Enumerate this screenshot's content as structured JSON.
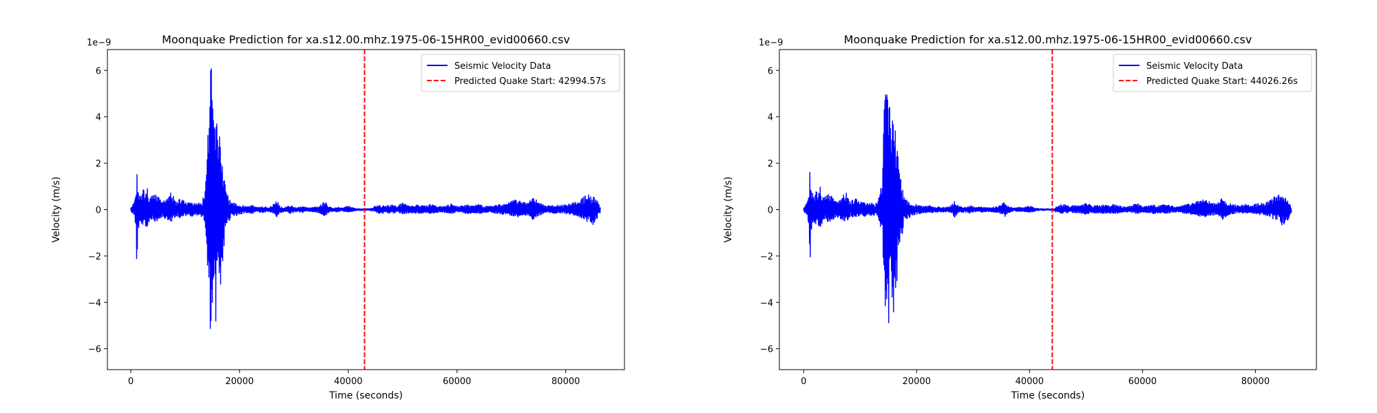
{
  "chart_data": [
    {
      "type": "line",
      "title": "Moonquake Prediction for xa.s12.00.mhz.1975-06-15HR00_evid00660.csv",
      "xlabel": "Time (seconds)",
      "ylabel": "Velocity (m/s)",
      "y_scale_label": "1e−9",
      "xlim": [
        -4300,
        90800
      ],
      "ylim": [
        -6.9e-09,
        6.9e-09
      ],
      "xticks": [
        0,
        20000,
        40000,
        60000,
        80000
      ],
      "xtick_labels": [
        "0",
        "20000",
        "40000",
        "60000",
        "80000"
      ],
      "yticks": [
        -6e-09,
        -4e-09,
        -2e-09,
        0,
        2e-09,
        4e-09,
        6e-09
      ],
      "ytick_labels": [
        "−6",
        "−4",
        "−2",
        "0",
        "2",
        "4",
        "6"
      ],
      "grid": false,
      "legend_position": "upper right",
      "series": [
        {
          "name": "Seismic Velocity Data",
          "color": "#0000ff",
          "style": "solid",
          "x_range": [
            0,
            86400
          ],
          "envelope_min": [
            [
              0,
              -1e-10
            ],
            [
              700,
              -3.5e-10
            ],
            [
              1000,
              -9e-10
            ],
            [
              1100,
              -2.55e-09
            ],
            [
              1300,
              -1e-09
            ],
            [
              1700,
              -5e-10
            ],
            [
              2200,
              -7e-10
            ],
            [
              2600,
              -8e-10
            ],
            [
              3000,
              -9e-10
            ],
            [
              3500,
              -5e-10
            ],
            [
              4200,
              -6e-10
            ],
            [
              5000,
              -5e-10
            ],
            [
              5800,
              -3e-10
            ],
            [
              6600,
              -5e-10
            ],
            [
              7500,
              -6e-10
            ],
            [
              8300,
              -3e-10
            ],
            [
              9200,
              -4e-10
            ],
            [
              10000,
              -3e-10
            ],
            [
              11000,
              -3e-10
            ],
            [
              12000,
              -3e-10
            ],
            [
              12800,
              -2.5e-10
            ],
            [
              13400,
              -5e-10
            ],
            [
              13900,
              -1.2e-09
            ],
            [
              14200,
              -3e-09
            ],
            [
              14400,
              -5.3e-09
            ],
            [
              14600,
              -5.6e-09
            ],
            [
              14800,
              -6.3e-09
            ],
            [
              15000,
              -5.2e-09
            ],
            [
              15300,
              -4.3e-09
            ],
            [
              15600,
              -5e-09
            ],
            [
              15900,
              -4.6e-09
            ],
            [
              16200,
              -3.6e-09
            ],
            [
              16500,
              -3.4e-09
            ],
            [
              16800,
              -2.6e-09
            ],
            [
              17200,
              -1.6e-09
            ],
            [
              17700,
              -8e-10
            ],
            [
              18300,
              -4.5e-10
            ],
            [
              19000,
              -3e-10
            ],
            [
              19800,
              -2.5e-10
            ],
            [
              20600,
              -2e-10
            ],
            [
              21400,
              -1.5e-10
            ],
            [
              22300,
              -2e-10
            ],
            [
              23200,
              -1.2e-10
            ],
            [
              24200,
              -1.5e-10
            ],
            [
              25200,
              -1.2e-10
            ],
            [
              26100,
              -1.5e-10
            ],
            [
              26800,
              -3.8e-10
            ],
            [
              27500,
              -1.5e-10
            ],
            [
              28500,
              -1.2e-10
            ],
            [
              29500,
              -1.8e-10
            ],
            [
              30500,
              -1e-10
            ],
            [
              31500,
              -1.5e-10
            ],
            [
              32500,
              -1e-10
            ],
            [
              33500,
              -1.2e-10
            ],
            [
              34500,
              -1.5e-10
            ],
            [
              35200,
              -2.2e-10
            ],
            [
              35700,
              -3.2e-10
            ],
            [
              36300,
              -1.5e-10
            ],
            [
              37200,
              -1e-10
            ],
            [
              38200,
              -1.2e-10
            ],
            [
              39000,
              -1e-10
            ],
            [
              40000,
              -1.5e-10
            ],
            [
              41000,
              -8e-11
            ],
            [
              42000,
              -5e-11
            ],
            [
              43000,
              -6e-11
            ],
            [
              44000,
              -5e-11
            ],
            [
              45000,
              -1.5e-10
            ],
            [
              46000,
              -2e-10
            ],
            [
              47000,
              -1.5e-10
            ],
            [
              48000,
              -2e-10
            ],
            [
              49000,
              -1.5e-10
            ],
            [
              50000,
              -2.5e-10
            ],
            [
              51000,
              -1.5e-10
            ],
            [
              52000,
              -1.8e-10
            ],
            [
              53000,
              -2e-10
            ],
            [
              54000,
              -1.5e-10
            ],
            [
              55000,
              -2e-10
            ],
            [
              56000,
              -1.5e-10
            ],
            [
              57000,
              -1.2e-10
            ],
            [
              58000,
              -1.5e-10
            ],
            [
              59000,
              -2e-10
            ],
            [
              60000,
              -1.2e-10
            ],
            [
              61000,
              -1.5e-10
            ],
            [
              62000,
              -2e-10
            ],
            [
              63000,
              -1.5e-10
            ],
            [
              64000,
              -2e-10
            ],
            [
              65000,
              -1.5e-10
            ],
            [
              66000,
              -1.2e-10
            ],
            [
              67000,
              -1.8e-10
            ],
            [
              68000,
              -2e-10
            ],
            [
              69000,
              -2.5e-10
            ],
            [
              70000,
              -3e-10
            ],
            [
              71000,
              -3.5e-10
            ],
            [
              72000,
              -3e-10
            ],
            [
              73000,
              -2.5e-10
            ],
            [
              74000,
              -5e-10
            ],
            [
              75000,
              -3e-10
            ],
            [
              76000,
              -2e-10
            ],
            [
              77000,
              -1.5e-10
            ],
            [
              78000,
              -2e-10
            ],
            [
              79000,
              -1.5e-10
            ],
            [
              80000,
              -2e-10
            ],
            [
              81000,
              -2.5e-10
            ],
            [
              82000,
              -3e-10
            ],
            [
              83000,
              -4e-10
            ],
            [
              84000,
              -5.5e-10
            ],
            [
              85000,
              -7.5e-10
            ],
            [
              85800,
              -4.5e-10
            ],
            [
              86400,
              -1e-10
            ]
          ],
          "envelope_max": [
            [
              0,
              1e-10
            ],
            [
              700,
              3.5e-10
            ],
            [
              1000,
              1e-09
            ],
            [
              1100,
              2.15e-09
            ],
            [
              1300,
              1.3e-09
            ],
            [
              1700,
              5e-10
            ],
            [
              2200,
              8e-10
            ],
            [
              2600,
              1.2e-09
            ],
            [
              3000,
              1e-09
            ],
            [
              3500,
              5e-10
            ],
            [
              4200,
              7e-10
            ],
            [
              5000,
              6e-10
            ],
            [
              5800,
              3.5e-10
            ],
            [
              6600,
              5e-10
            ],
            [
              7500,
              8e-10
            ],
            [
              8300,
              4e-10
            ],
            [
              9200,
              5e-10
            ],
            [
              10000,
              3.5e-10
            ],
            [
              11000,
              3e-10
            ],
            [
              12000,
              3e-10
            ],
            [
              12800,
              3e-10
            ],
            [
              13400,
              6e-10
            ],
            [
              13900,
              1.5e-09
            ],
            [
              14200,
              3.8e-09
            ],
            [
              14400,
              5.8e-09
            ],
            [
              14600,
              6e-09
            ],
            [
              14800,
              6.35e-09
            ],
            [
              15000,
              5.4e-09
            ],
            [
              15300,
              4.5e-09
            ],
            [
              15600,
              4.3e-09
            ],
            [
              15900,
              3.8e-09
            ],
            [
              16200,
              3.9e-09
            ],
            [
              16500,
              2.7e-09
            ],
            [
              16800,
              2.2e-09
            ],
            [
              17200,
              1.3e-09
            ],
            [
              17700,
              7e-10
            ],
            [
              18300,
              4e-10
            ],
            [
              19000,
              3e-10
            ],
            [
              19800,
              2.5e-10
            ],
            [
              20600,
              2e-10
            ],
            [
              21400,
              1.5e-10
            ],
            [
              22300,
              2e-10
            ],
            [
              23200,
              1.2e-10
            ],
            [
              24200,
              1.5e-10
            ],
            [
              25200,
              1.2e-10
            ],
            [
              26100,
              2e-10
            ],
            [
              26800,
              4.5e-10
            ],
            [
              27500,
              1.5e-10
            ],
            [
              28500,
              1.2e-10
            ],
            [
              29500,
              2e-10
            ],
            [
              30500,
              1e-10
            ],
            [
              31500,
              1.5e-10
            ],
            [
              32500,
              1e-10
            ],
            [
              33500,
              1.2e-10
            ],
            [
              34500,
              1.5e-10
            ],
            [
              35200,
              2.8e-10
            ],
            [
              35700,
              3.8e-10
            ],
            [
              36300,
              1.5e-10
            ],
            [
              37200,
              1e-10
            ],
            [
              38200,
              1.2e-10
            ],
            [
              39000,
              1e-10
            ],
            [
              40000,
              1.8e-10
            ],
            [
              41000,
              8e-11
            ],
            [
              42000,
              5e-11
            ],
            [
              43000,
              6e-11
            ],
            [
              44000,
              5e-11
            ],
            [
              45000,
              1.8e-10
            ],
            [
              46000,
              2.5e-10
            ],
            [
              47000,
              1.8e-10
            ],
            [
              48000,
              2.2e-10
            ],
            [
              49000,
              1.8e-10
            ],
            [
              50000,
              3.5e-10
            ],
            [
              51000,
              1.8e-10
            ],
            [
              52000,
              2e-10
            ],
            [
              53000,
              2.2e-10
            ],
            [
              54000,
              1.8e-10
            ],
            [
              55000,
              2.5e-10
            ],
            [
              56000,
              1.8e-10
            ],
            [
              57000,
              1.5e-10
            ],
            [
              58000,
              1.8e-10
            ],
            [
              59000,
              3e-10
            ],
            [
              60000,
              1.5e-10
            ],
            [
              61000,
              1.8e-10
            ],
            [
              62000,
              2.2e-10
            ],
            [
              63000,
              1.8e-10
            ],
            [
              64000,
              2.5e-10
            ],
            [
              65000,
              1.8e-10
            ],
            [
              66000,
              1.5e-10
            ],
            [
              67000,
              2e-10
            ],
            [
              68000,
              2.5e-10
            ],
            [
              69000,
              3e-10
            ],
            [
              70000,
              4e-10
            ],
            [
              71000,
              4.5e-10
            ],
            [
              72000,
              3.5e-10
            ],
            [
              73000,
              3e-10
            ],
            [
              74000,
              5.5e-10
            ],
            [
              75000,
              3.5e-10
            ],
            [
              76000,
              2.5e-10
            ],
            [
              77000,
              2e-10
            ],
            [
              78000,
              2.5e-10
            ],
            [
              79000,
              2e-10
            ],
            [
              80000,
              2.5e-10
            ],
            [
              81000,
              3e-10
            ],
            [
              82000,
              3.5e-10
            ],
            [
              83000,
              5e-10
            ],
            [
              84000,
              7e-10
            ],
            [
              85000,
              6.5e-10
            ],
            [
              85800,
              4e-10
            ],
            [
              86400,
              1e-10
            ]
          ]
        },
        {
          "name": "Predicted Quake Start: 42994.57s",
          "color": "#ff0000",
          "style": "dashed",
          "x": 42994.57
        }
      ]
    },
    {
      "type": "line",
      "title": "Moonquake Prediction for xa.s12.00.mhz.1975-06-15HR00_evid00660.csv",
      "xlabel": "Time (seconds)",
      "ylabel": "Velocity (m/s)",
      "y_scale_label": "1e−9",
      "xlim": [
        -4300,
        90800
      ],
      "ylim": [
        -6.9e-09,
        6.9e-09
      ],
      "xticks": [
        0,
        20000,
        40000,
        60000,
        80000
      ],
      "xtick_labels": [
        "0",
        "20000",
        "40000",
        "60000",
        "80000"
      ],
      "yticks": [
        -6e-09,
        -4e-09,
        -2e-09,
        0,
        2e-09,
        4e-09,
        6e-09
      ],
      "ytick_labels": [
        "−6",
        "−4",
        "−2",
        "0",
        "2",
        "4",
        "6"
      ],
      "grid": false,
      "legend_position": "upper right",
      "series": [
        {
          "name": "Seismic Velocity Data",
          "color": "#0000ff",
          "style": "solid",
          "same_data_as_chart": 0
        },
        {
          "name": "Predicted Quake Start: 44026.26s",
          "color": "#ff0000",
          "style": "dashed",
          "x": 44026.26
        }
      ]
    }
  ]
}
